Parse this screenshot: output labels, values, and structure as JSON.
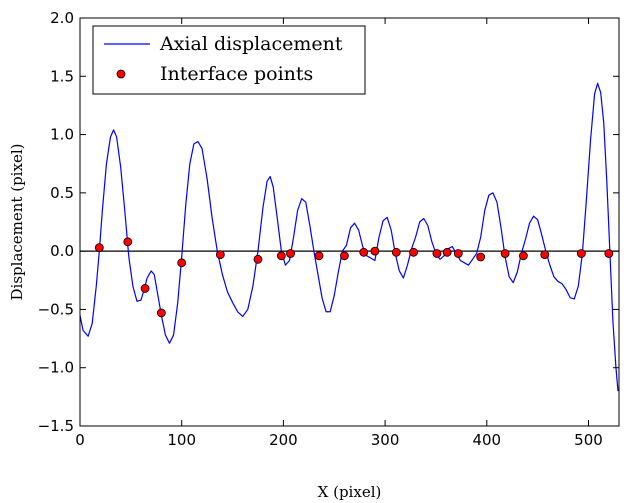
{
  "chart_data": {
    "type": "line",
    "xlabel": "X (pixel)",
    "ylabel": "Displacement (pixel)",
    "xlim": [
      0,
      530
    ],
    "ylim": [
      -1.5,
      2.0
    ],
    "x_ticks": [
      0,
      100,
      200,
      300,
      400,
      500
    ],
    "x_tick_labels": [
      "0",
      "100",
      "200",
      "300",
      "400",
      "500"
    ],
    "y_ticks": [
      -1.5,
      -1.0,
      -0.5,
      0.0,
      0.5,
      1.0,
      1.5,
      2.0
    ],
    "y_tick_labels": [
      "−1.5",
      "−1.0",
      "−0.5",
      "0.0",
      "0.5",
      "1.0",
      "1.5",
      "2.0"
    ],
    "grid": false,
    "legend_position": "top-left",
    "reference_line": {
      "y": 0.0,
      "color": "#000000"
    },
    "series": [
      {
        "name": "Axial displacement",
        "kind": "line",
        "color": "#0000ff",
        "points": [
          [
            0,
            -0.55
          ],
          [
            3,
            -0.68
          ],
          [
            8,
            -0.73
          ],
          [
            12,
            -0.62
          ],
          [
            16,
            -0.3
          ],
          [
            19,
            0.0
          ],
          [
            22,
            0.35
          ],
          [
            26,
            0.75
          ],
          [
            30,
            0.98
          ],
          [
            33,
            1.04
          ],
          [
            36,
            0.98
          ],
          [
            40,
            0.72
          ],
          [
            44,
            0.35
          ],
          [
            48,
            -0.05
          ],
          [
            52,
            -0.3
          ],
          [
            56,
            -0.43
          ],
          [
            60,
            -0.42
          ],
          [
            63,
            -0.33
          ],
          [
            66,
            -0.23
          ],
          [
            70,
            -0.17
          ],
          [
            73,
            -0.2
          ],
          [
            76,
            -0.35
          ],
          [
            80,
            -0.55
          ],
          [
            84,
            -0.72
          ],
          [
            88,
            -0.79
          ],
          [
            92,
            -0.72
          ],
          [
            96,
            -0.45
          ],
          [
            100,
            -0.05
          ],
          [
            104,
            0.4
          ],
          [
            108,
            0.75
          ],
          [
            112,
            0.92
          ],
          [
            116,
            0.94
          ],
          [
            120,
            0.88
          ],
          [
            125,
            0.62
          ],
          [
            130,
            0.28
          ],
          [
            135,
            0.0
          ],
          [
            140,
            -0.2
          ],
          [
            145,
            -0.35
          ],
          [
            150,
            -0.44
          ],
          [
            155,
            -0.52
          ],
          [
            160,
            -0.56
          ],
          [
            165,
            -0.5
          ],
          [
            170,
            -0.3
          ],
          [
            175,
            0.0
          ],
          [
            180,
            0.38
          ],
          [
            184,
            0.6
          ],
          [
            187,
            0.64
          ],
          [
            190,
            0.55
          ],
          [
            194,
            0.28
          ],
          [
            198,
            0.0
          ],
          [
            202,
            -0.12
          ],
          [
            206,
            -0.08
          ],
          [
            210,
            0.12
          ],
          [
            214,
            0.35
          ],
          [
            218,
            0.45
          ],
          [
            222,
            0.42
          ],
          [
            226,
            0.22
          ],
          [
            230,
            0.0
          ],
          [
            234,
            -0.2
          ],
          [
            238,
            -0.4
          ],
          [
            242,
            -0.52
          ],
          [
            246,
            -0.52
          ],
          [
            250,
            -0.38
          ],
          [
            254,
            -0.18
          ],
          [
            258,
            0.0
          ],
          [
            262,
            0.05
          ],
          [
            266,
            0.2
          ],
          [
            270,
            0.24
          ],
          [
            274,
            0.18
          ],
          [
            278,
            0.04
          ],
          [
            282,
            -0.04
          ],
          [
            286,
            -0.06
          ],
          [
            290,
            -0.08
          ],
          [
            294,
            0.12
          ],
          [
            298,
            0.26
          ],
          [
            302,
            0.29
          ],
          [
            306,
            0.18
          ],
          [
            310,
            -0.02
          ],
          [
            314,
            -0.17
          ],
          [
            318,
            -0.23
          ],
          [
            322,
            -0.12
          ],
          [
            326,
            0.02
          ],
          [
            330,
            0.12
          ],
          [
            334,
            0.25
          ],
          [
            338,
            0.28
          ],
          [
            342,
            0.22
          ],
          [
            346,
            0.08
          ],
          [
            350,
            -0.02
          ],
          [
            354,
            -0.07
          ],
          [
            358,
            -0.04
          ],
          [
            362,
            0.02
          ],
          [
            366,
            0.04
          ],
          [
            370,
            -0.02
          ],
          [
            374,
            -0.08
          ],
          [
            378,
            -0.1
          ],
          [
            382,
            -0.12
          ],
          [
            386,
            -0.07
          ],
          [
            390,
            -0.02
          ],
          [
            394,
            0.12
          ],
          [
            398,
            0.35
          ],
          [
            402,
            0.48
          ],
          [
            406,
            0.5
          ],
          [
            410,
            0.42
          ],
          [
            414,
            0.2
          ],
          [
            418,
            -0.05
          ],
          [
            422,
            -0.22
          ],
          [
            426,
            -0.27
          ],
          [
            430,
            -0.18
          ],
          [
            434,
            -0.02
          ],
          [
            438,
            0.1
          ],
          [
            442,
            0.24
          ],
          [
            446,
            0.3
          ],
          [
            450,
            0.27
          ],
          [
            454,
            0.14
          ],
          [
            458,
            0.0
          ],
          [
            462,
            -0.12
          ],
          [
            466,
            -0.22
          ],
          [
            470,
            -0.26
          ],
          [
            474,
            -0.28
          ],
          [
            478,
            -0.33
          ],
          [
            482,
            -0.4
          ],
          [
            486,
            -0.41
          ],
          [
            490,
            -0.3
          ],
          [
            494,
            -0.02
          ],
          [
            498,
            0.45
          ],
          [
            502,
            0.95
          ],
          [
            506,
            1.35
          ],
          [
            509,
            1.44
          ],
          [
            512,
            1.36
          ],
          [
            515,
            1.1
          ],
          [
            518,
            0.6
          ],
          [
            521,
            0.0
          ],
          [
            524,
            -0.6
          ],
          [
            527,
            -1.0
          ],
          [
            529,
            -1.2
          ]
        ]
      },
      {
        "name": "Interface points",
        "kind": "scatter",
        "color": "#ff0000",
        "edge_color": "#000000",
        "points": [
          [
            19,
            0.03
          ],
          [
            47,
            0.08
          ],
          [
            64,
            -0.32
          ],
          [
            80,
            -0.53
          ],
          [
            100,
            -0.1
          ],
          [
            138,
            -0.03
          ],
          [
            175,
            -0.07
          ],
          [
            198,
            -0.04
          ],
          [
            207,
            -0.02
          ],
          [
            235,
            -0.04
          ],
          [
            260,
            -0.04
          ],
          [
            279,
            -0.01
          ],
          [
            290,
            0.0
          ],
          [
            311,
            -0.01
          ],
          [
            328,
            -0.01
          ],
          [
            351,
            -0.02
          ],
          [
            361,
            -0.01
          ],
          [
            372,
            -0.02
          ],
          [
            394,
            -0.05
          ],
          [
            418,
            -0.02
          ],
          [
            436,
            -0.04
          ],
          [
            457,
            -0.03
          ],
          [
            493,
            -0.02
          ],
          [
            520,
            -0.02
          ]
        ]
      }
    ]
  }
}
